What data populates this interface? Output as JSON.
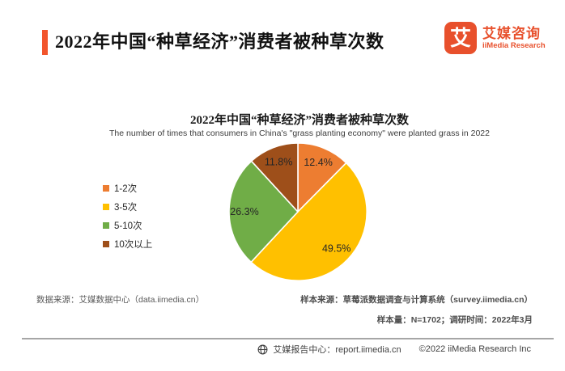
{
  "header": {
    "title": "2022年中国“种草经济”消费者被种草次数",
    "logo": {
      "icon_glyph": "艾",
      "name_cn": "艾媒咨询",
      "name_en": "iiMedia Research",
      "brand_color": "#E8502C"
    },
    "accent_bar_color": "#F2552C"
  },
  "chart_data": {
    "type": "pie",
    "title": "2022年中国“种草经济”消费者被种草次数",
    "subtitle": "The number of times that consumers in China's \"grass planting economy\" were planted grass in 2022",
    "categories": [
      "1-2次",
      "3-5次",
      "5-10次",
      "10次以上"
    ],
    "values": [
      12.4,
      49.5,
      26.3,
      11.8
    ],
    "labels": [
      "12.4%",
      "49.5%",
      "26.3%",
      "11.8%"
    ],
    "colors": [
      "#ED7D31",
      "#FFC000",
      "#70AD47",
      "#9E4F1A"
    ],
    "start_angle_deg": 0,
    "direction": "clockwise",
    "legend_position": "left",
    "label_position": "inside"
  },
  "footnotes": {
    "data_source": "数据来源：艾媒数据中心（data.iimedia.cn）",
    "sample_source": "样本来源：草莓派数据调查与计算系统（survey.iimedia.cn）",
    "sample_info": "样本量：N=1702；调研时间：2022年3月"
  },
  "footer": {
    "report_center": "艾媒报告中心：report.iimedia.cn",
    "copyright": "©2022  iiMedia Research Inc"
  }
}
